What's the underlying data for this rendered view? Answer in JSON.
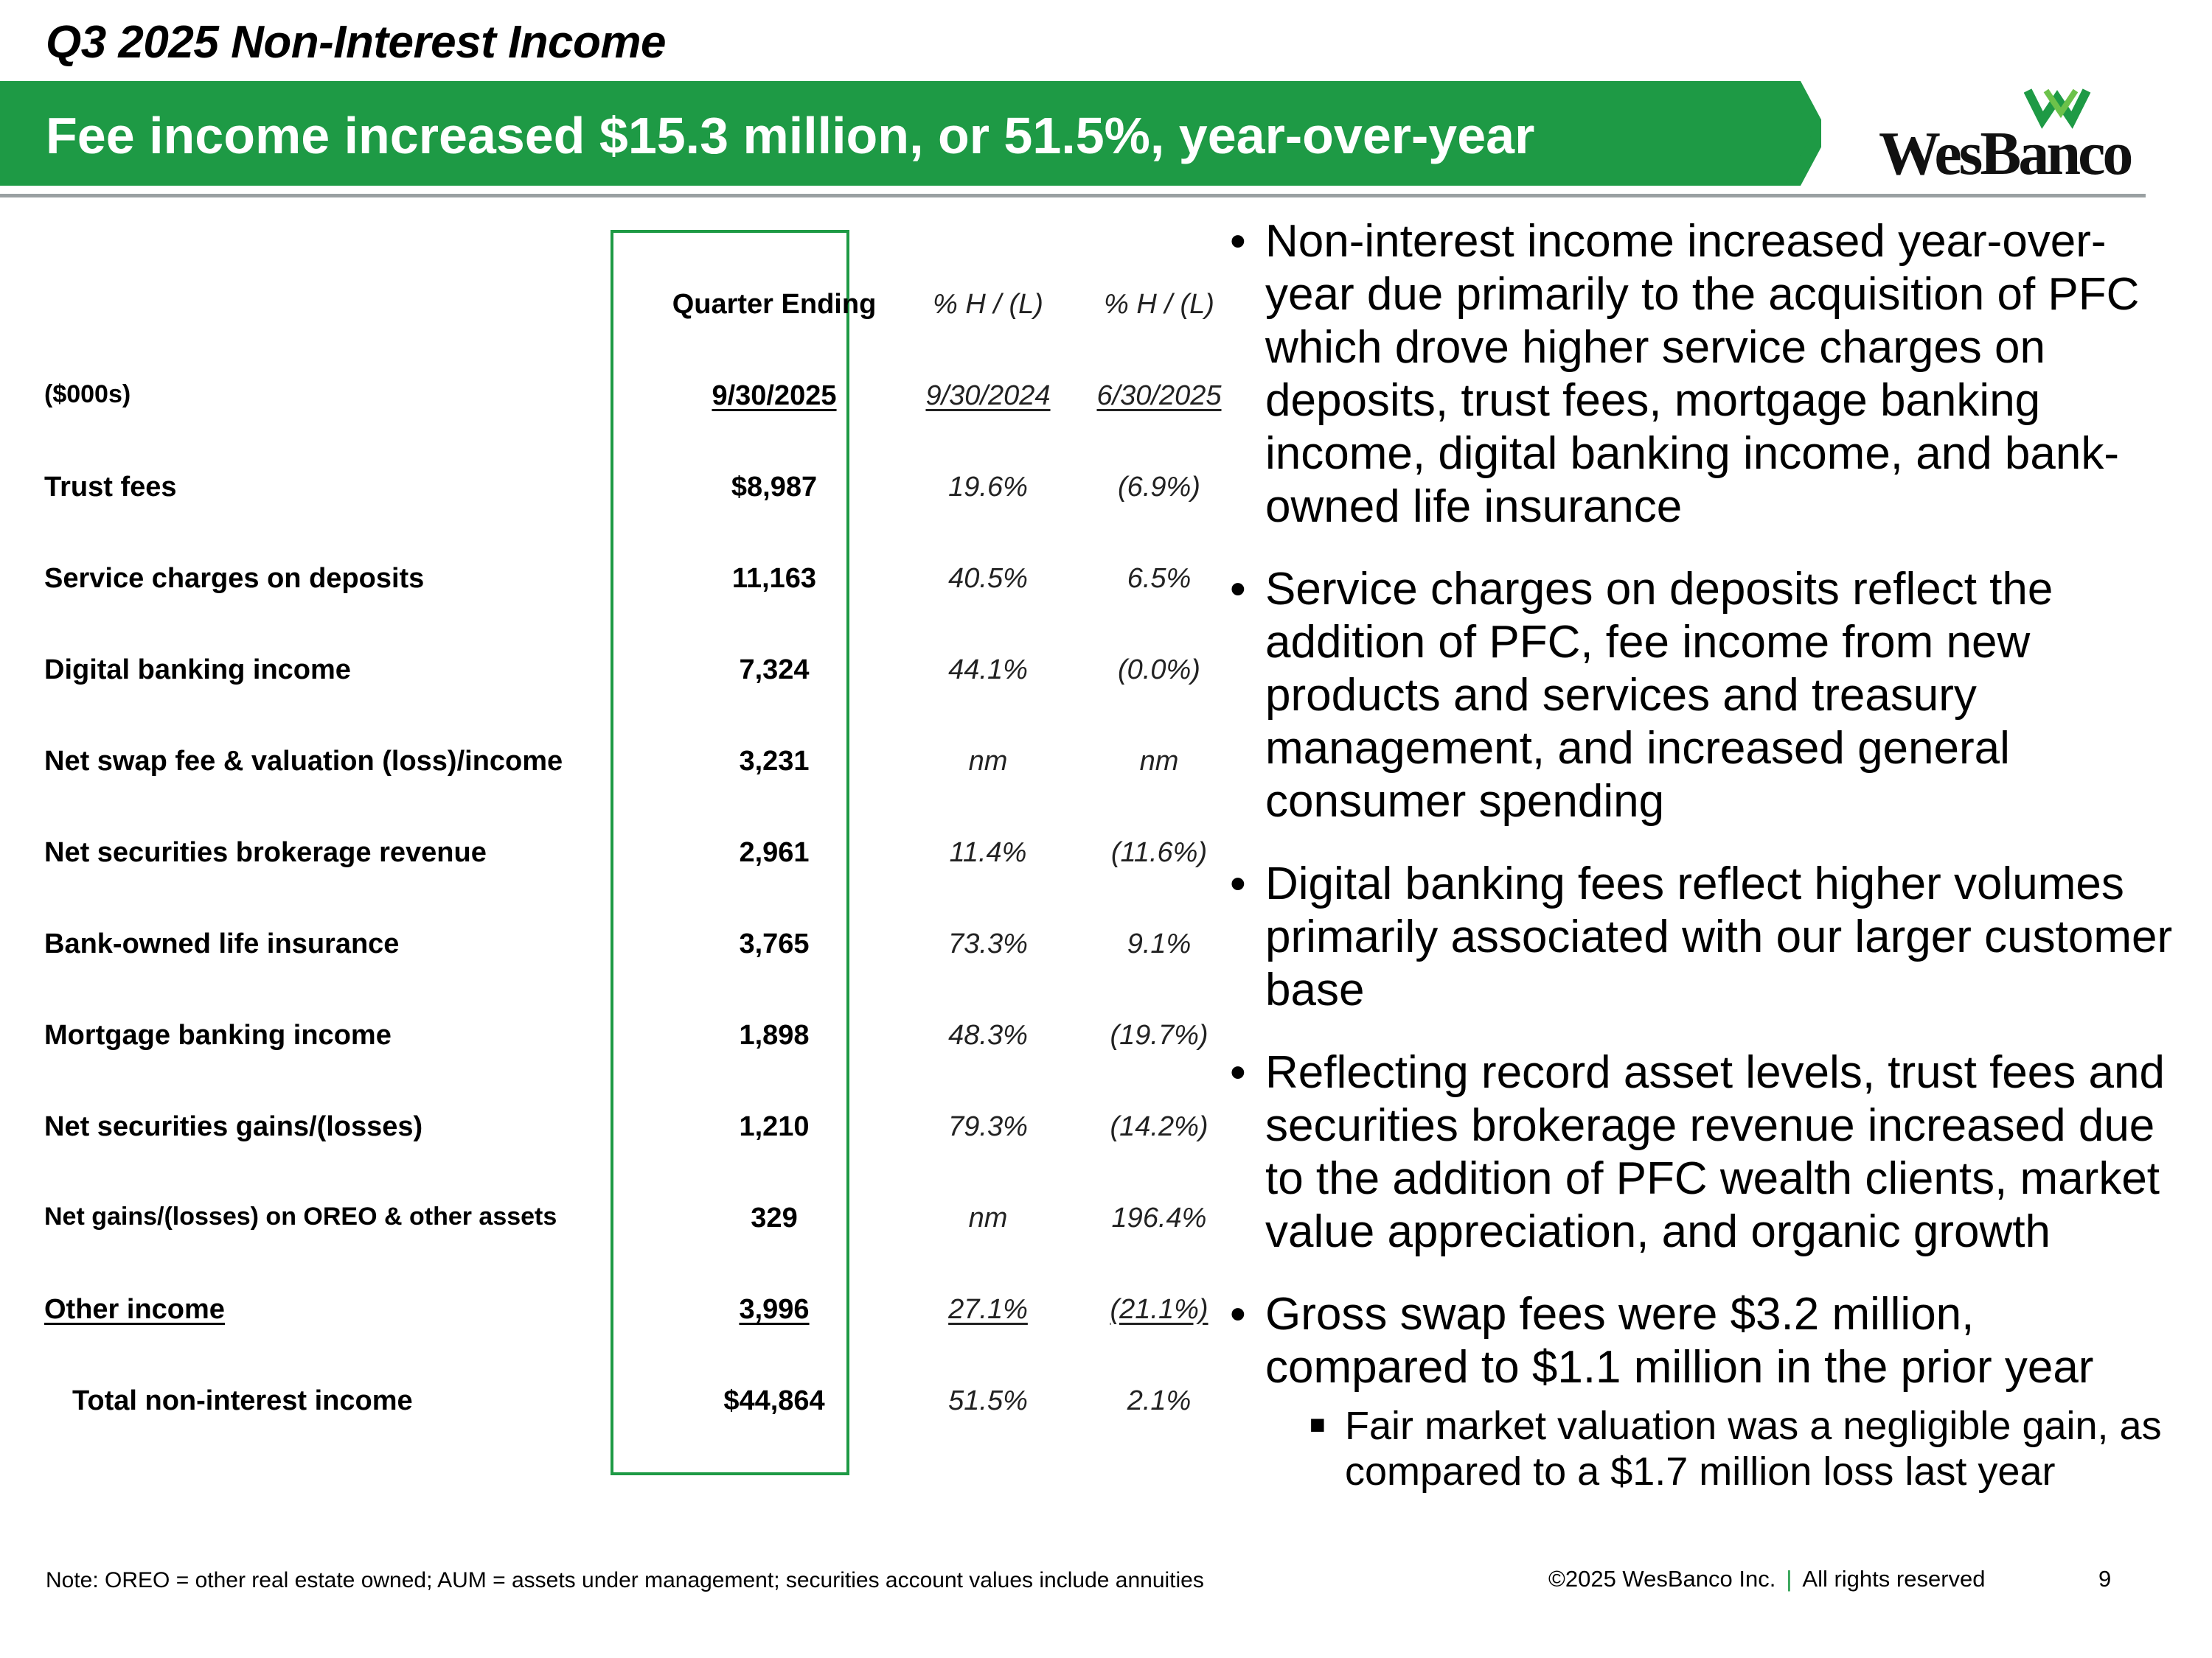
{
  "header": {
    "title": "Q3 2025 Non-Interest Income",
    "banner": "Fee income increased $15.3 million, or 51.5%, year-over-year",
    "logo_text": "WesBanco",
    "brand_green": "#1e9a45"
  },
  "table": {
    "headers": {
      "col1": "Quarter Ending",
      "col2": "% H / (L)",
      "col3": "% H / (L)"
    },
    "subheaders": {
      "label": "($000s)",
      "col1": "9/30/2025",
      "col2": "9/30/2024",
      "col3": "6/30/2025"
    },
    "rows": [
      {
        "label": "Trust fees",
        "value": "$8,987",
        "yoy": "19.6%",
        "qoq": "(6.9%)"
      },
      {
        "label": "Service charges on deposits",
        "value": "11,163",
        "yoy": "40.5%",
        "qoq": "6.5%"
      },
      {
        "label": "Digital banking income",
        "value": "7,324",
        "yoy": "44.1%",
        "qoq": "(0.0%)"
      },
      {
        "label": "Net swap fee & valuation (loss)/income",
        "value": "3,231",
        "yoy": "nm",
        "qoq": "nm"
      },
      {
        "label": "Net securities brokerage revenue",
        "value": "2,961",
        "yoy": "11.4%",
        "qoq": "(11.6%)"
      },
      {
        "label": "Bank-owned life insurance",
        "value": "3,765",
        "yoy": "73.3%",
        "qoq": "9.1%"
      },
      {
        "label": "Mortgage banking income",
        "value": "1,898",
        "yoy": "48.3%",
        "qoq": "(19.7%)"
      },
      {
        "label": "Net securities gains/(losses)",
        "value": "1,210",
        "yoy": "79.3%",
        "qoq": "(14.2%)"
      },
      {
        "label": "Net gains/(losses) on OREO & other assets",
        "value": "329",
        "yoy": "nm",
        "qoq": "196.4%"
      },
      {
        "label": "Other income",
        "value": "3,996",
        "yoy": "27.1%",
        "qoq": "(21.1%)"
      },
      {
        "label": "Total non-interest income",
        "value": "$44,864",
        "yoy": "51.5%",
        "qoq": "2.1%"
      }
    ]
  },
  "bullets": [
    "Non-interest income increased year-over-year due primarily to the acquisition of PFC which drove higher service charges on deposits, trust fees, mortgage banking income, digital banking income, and bank-owned life insurance",
    "Service charges on deposits reflect the addition of PFC, fee income from new products and services and treasury management, and increased general consumer spending",
    "Digital banking fees reflect higher volumes primarily associated with our larger customer base",
    "Reflecting record asset levels, trust fees and securities brokerage revenue increased due to the addition of PFC wealth clients, market value appreciation, and organic growth",
    "Gross swap fees were $3.2 million, compared to $1.1 million in the prior year"
  ],
  "sub_bullet": "Fair market valuation was a negligible gain, as compared to a $1.7 million loss last year",
  "footer": {
    "note": "Note: OREO = other real estate owned; AUM = assets under management; securities account values include annuities",
    "copyright": "©2025 WesBanco Inc.",
    "separator": "|",
    "rights": "All rights reserved",
    "page": "9"
  }
}
